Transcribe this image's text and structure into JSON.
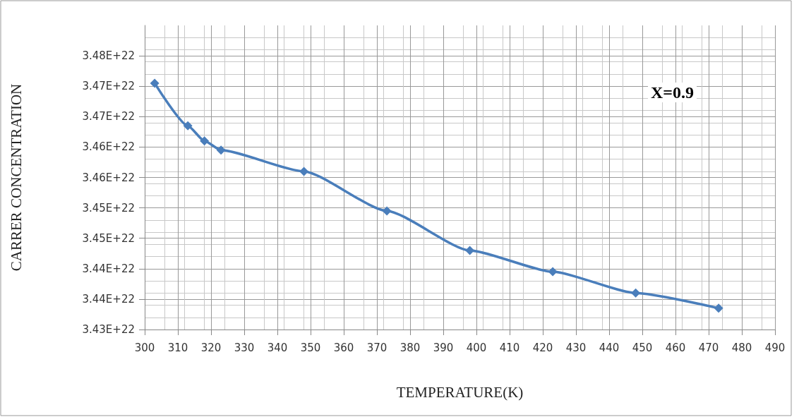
{
  "chart_data": {
    "type": "line",
    "xlabel": "TEMPERATURE(K)",
    "ylabel": "CARRER CONCENTRATION",
    "annotations": [
      "X=0.9"
    ],
    "x": [
      303,
      313,
      318,
      323,
      348,
      373,
      398,
      423,
      448,
      473
    ],
    "series": [
      {
        "color": "#4a7ebb",
        "values": [
          3.4705e+22,
          3.4635e+22,
          3.461e+22,
          3.4595e+22,
          3.456e+22,
          3.4495e+22,
          3.443e+22,
          3.4395e+22,
          3.436e+22,
          3.4335e+22
        ]
      }
    ],
    "xlim": [
      300,
      490
    ],
    "xticks": [
      300,
      310,
      320,
      330,
      340,
      350,
      360,
      370,
      380,
      390,
      400,
      410,
      420,
      430,
      440,
      450,
      460,
      470,
      480,
      490
    ],
    "ylim": [
      3.43e+22,
      3.48e+22
    ],
    "yticks": [
      {
        "value": 3.43e+22,
        "label": "3.43E+22"
      },
      {
        "value": 3.435e+22,
        "label": "3.44E+22"
      },
      {
        "value": 3.44e+22,
        "label": "3.44E+22"
      },
      {
        "value": 3.445e+22,
        "label": "3.45E+22"
      },
      {
        "value": 3.45e+22,
        "label": "3.45E+22"
      },
      {
        "value": 3.455e+22,
        "label": "3.46E+22"
      },
      {
        "value": 3.46e+22,
        "label": "3.46E+22"
      },
      {
        "value": 3.465e+22,
        "label": "3.47E+22"
      },
      {
        "value": 3.47e+22,
        "label": "3.47E+22"
      },
      {
        "value": 3.475e+22,
        "label": "3.48E+22"
      }
    ],
    "grid": true,
    "marker": "diamond",
    "line_style": "solid"
  }
}
